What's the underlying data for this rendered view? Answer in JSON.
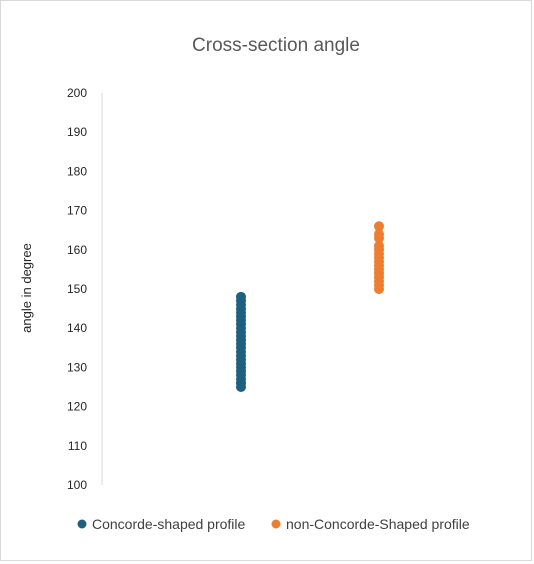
{
  "chart_data": {
    "type": "scatter",
    "title": "Cross-section  angle",
    "ylabel": "angle in degree",
    "xlabel": "",
    "ylim": [
      100,
      200
    ],
    "yticks": [
      100,
      110,
      120,
      130,
      140,
      150,
      160,
      170,
      180,
      190,
      200
    ],
    "grid": false,
    "legend_position": "bottom",
    "series": [
      {
        "name": "Concorde-shaped profile",
        "color": "#1F5F7F",
        "x": 1,
        "y": [
          125,
          126,
          127,
          128,
          129,
          130,
          131,
          132,
          133,
          134,
          135,
          136,
          137,
          138,
          139,
          140,
          141,
          142,
          143,
          144,
          145,
          146,
          147,
          148
        ]
      },
      {
        "name": "non-Concorde-Shaped profile",
        "color": "#ED7D31",
        "x": 2,
        "y": [
          150,
          151,
          152,
          153,
          154,
          155,
          156,
          157,
          158,
          159,
          160,
          161,
          163,
          164,
          166
        ]
      }
    ]
  }
}
